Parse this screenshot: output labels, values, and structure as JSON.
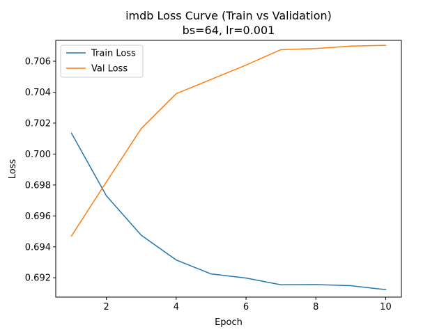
{
  "chart_data": {
    "type": "line",
    "title_line1": "imdb Loss Curve (Train vs Validation)",
    "title_line2": "bs=64, lr=0.001",
    "xlabel": "Epoch",
    "ylabel": "Loss",
    "xlim": [
      0.55,
      10.45
    ],
    "ylim": [
      0.69075,
      0.70735
    ],
    "xticks": [
      2,
      4,
      6,
      8,
      10
    ],
    "yticks": [
      0.692,
      0.694,
      0.696,
      0.698,
      0.7,
      0.702,
      0.704,
      0.706
    ],
    "yticks_labels": [
      "0.692",
      "0.694",
      "0.696",
      "0.698",
      "0.700",
      "0.702",
      "0.704",
      "0.706"
    ],
    "grid": false,
    "legend_position": "top-left",
    "x": [
      1,
      2,
      3,
      4,
      5,
      6,
      7,
      8,
      9,
      10
    ],
    "series": [
      {
        "name": "Train Loss",
        "color": "#1f77b4",
        "values": [
          0.70135,
          0.6973,
          0.69475,
          0.69315,
          0.69225,
          0.69198,
          0.69155,
          0.69156,
          0.69149,
          0.69123
        ]
      },
      {
        "name": "Val Loss",
        "color": "#ff7f0e",
        "values": [
          0.6947,
          0.6982,
          0.70165,
          0.7039,
          0.70483,
          0.70575,
          0.70675,
          0.70682,
          0.70698,
          0.70703
        ]
      }
    ]
  }
}
